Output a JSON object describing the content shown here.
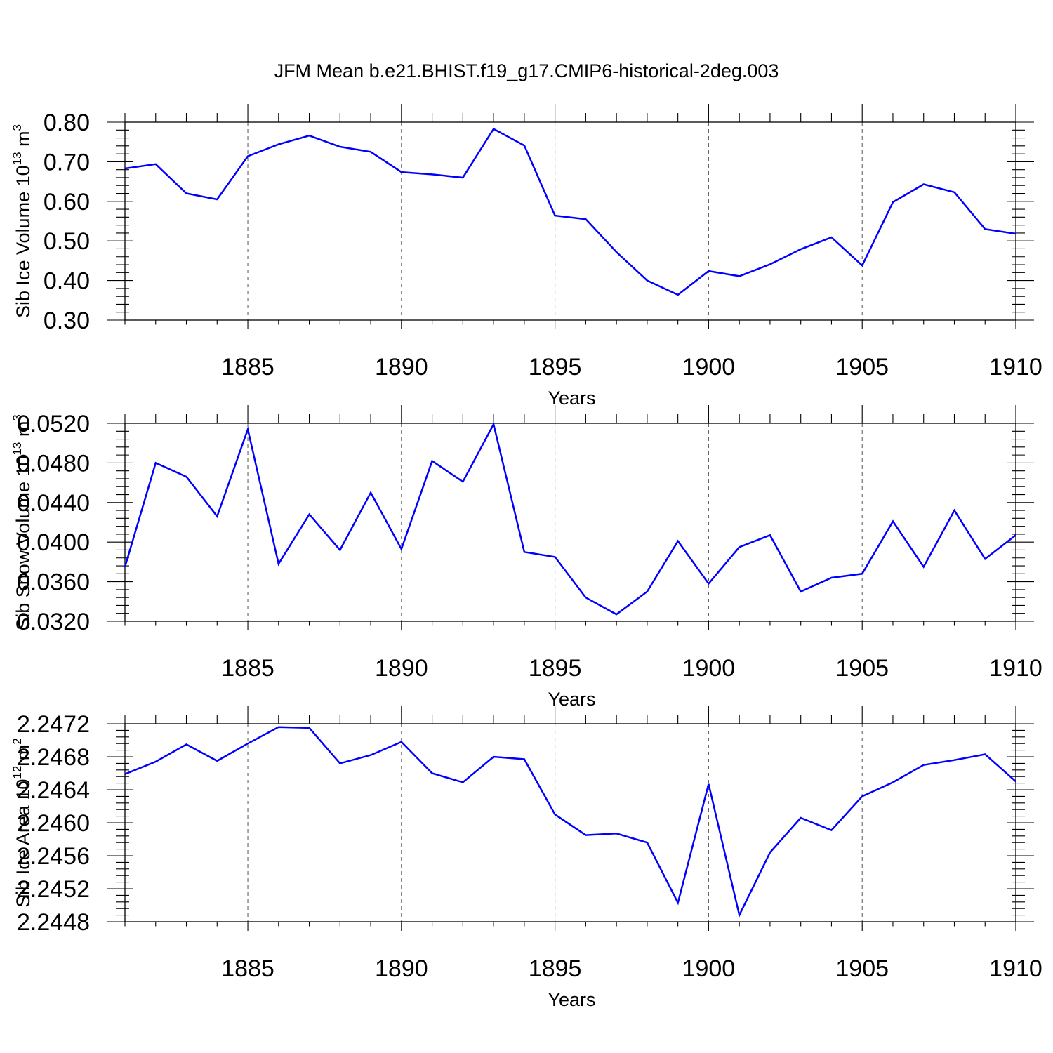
{
  "title": "JFM Mean b.e21.BHIST.f19_g17.CMIP6-historical-2deg.003",
  "chart_data": [
    {
      "type": "line",
      "title": "JFM Mean b.e21.BHIST.f19_g17.CMIP6-historical-2deg.003",
      "xlabel": "Years",
      "ylabel": "Sib Ice Volume 10",
      "ylabel_sup1": "13",
      "ylabel_unit": " m",
      "ylabel_sup2": "3",
      "xlim": [
        1881,
        1910
      ],
      "ylim": [
        0.3,
        0.8
      ],
      "xticks": [
        "1885",
        "1890",
        "1895",
        "1900",
        "1905",
        "1910"
      ],
      "yticks": [
        "0.30",
        "0.40",
        "0.50",
        "0.60",
        "0.70",
        "0.80"
      ],
      "grid": "vertical dashed at major x ticks",
      "color": "#0000ff",
      "x": [
        1881,
        1882,
        1883,
        1884,
        1885,
        1886,
        1887,
        1888,
        1889,
        1890,
        1891,
        1892,
        1893,
        1894,
        1895,
        1896,
        1897,
        1898,
        1899,
        1900,
        1901,
        1902,
        1903,
        1904,
        1905,
        1906,
        1907,
        1908,
        1909,
        1910
      ],
      "values": [
        0.683,
        0.694,
        0.62,
        0.605,
        0.714,
        0.744,
        0.766,
        0.738,
        0.725,
        0.674,
        0.668,
        0.66,
        0.783,
        0.741,
        0.564,
        0.555,
        0.472,
        0.4,
        0.364,
        0.424,
        0.411,
        0.441,
        0.479,
        0.509,
        0.438,
        0.598,
        0.643,
        0.623,
        0.53,
        0.518
      ]
    },
    {
      "type": "line",
      "xlabel": "Years",
      "ylabel": "Sib Snow Volume 10",
      "ylabel_sup1": "13",
      "ylabel_unit": " m",
      "ylabel_sup2": "3",
      "xlim": [
        1881,
        1910
      ],
      "ylim": [
        0.032,
        0.052
      ],
      "xticks": [
        "1885",
        "1890",
        "1895",
        "1900",
        "1905",
        "1910"
      ],
      "yticks": [
        "0.0320",
        "0.0360",
        "0.0400",
        "0.0440",
        "0.0480",
        "0.0520"
      ],
      "grid": "vertical dashed at major x ticks",
      "color": "#0000ff",
      "x": [
        1881,
        1882,
        1883,
        1884,
        1885,
        1886,
        1887,
        1888,
        1889,
        1890,
        1891,
        1892,
        1893,
        1894,
        1895,
        1896,
        1897,
        1898,
        1899,
        1900,
        1901,
        1902,
        1903,
        1904,
        1905,
        1906,
        1907,
        1908,
        1909,
        1910
      ],
      "values": [
        0.0375,
        0.048,
        0.0466,
        0.0426,
        0.0514,
        0.0378,
        0.0428,
        0.0392,
        0.045,
        0.0393,
        0.0482,
        0.0461,
        0.0519,
        0.039,
        0.0385,
        0.0344,
        0.0327,
        0.035,
        0.0401,
        0.0358,
        0.0395,
        0.0407,
        0.035,
        0.0364,
        0.0368,
        0.0421,
        0.0375,
        0.0432,
        0.0383,
        0.0407
      ]
    },
    {
      "type": "line",
      "xlabel": "Years",
      "ylabel": "Sib Ice Area 10",
      "ylabel_sup1": "12",
      "ylabel_unit": " m",
      "ylabel_sup2": "2",
      "xlim": [
        1881,
        1910
      ],
      "ylim": [
        2.2448,
        2.2472
      ],
      "xticks": [
        "1885",
        "1890",
        "1895",
        "1900",
        "1905",
        "1910"
      ],
      "yticks": [
        "2.2448",
        "2.2452",
        "2.2456",
        "2.2460",
        "2.2464",
        "2.2468",
        "2.2472"
      ],
      "grid": "vertical dashed at major x ticks",
      "color": "#0000ff",
      "x": [
        1881,
        1882,
        1883,
        1884,
        1885,
        1886,
        1887,
        1888,
        1889,
        1890,
        1891,
        1892,
        1893,
        1894,
        1895,
        1896,
        1897,
        1898,
        1899,
        1900,
        1901,
        1902,
        1903,
        1904,
        1905,
        1906,
        1907,
        1908,
        1909,
        1910
      ],
      "values": [
        2.24659,
        2.24674,
        2.24695,
        2.24675,
        2.24696,
        2.24716,
        2.24715,
        2.24672,
        2.24682,
        2.24698,
        2.2466,
        2.24649,
        2.2468,
        2.24677,
        2.2461,
        2.24585,
        2.24587,
        2.24576,
        2.24503,
        2.24647,
        2.24488,
        2.24564,
        2.24606,
        2.24591,
        2.24632,
        2.24649,
        2.2467,
        2.24676,
        2.24683,
        2.2465
      ]
    }
  ]
}
